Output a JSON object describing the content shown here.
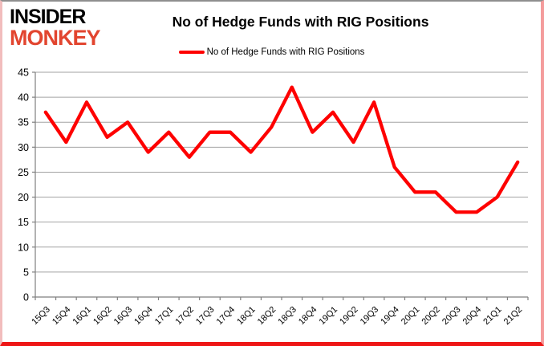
{
  "branding": {
    "logo_line1": "INSIDER",
    "logo_line2": "MONKEY",
    "logo_color_primary": "#000000",
    "logo_color_secondary": "#e2452f"
  },
  "header": {
    "title": "No of Hedge Funds with RIG Positions"
  },
  "legend": {
    "label": "No of Hedge Funds with RIG Positions",
    "marker_color": "#fe0000"
  },
  "chart_data": {
    "type": "line",
    "title": "No of Hedge Funds with RIG Positions",
    "categories": [
      "15Q3",
      "15Q4",
      "16Q1",
      "16Q2",
      "16Q3",
      "16Q4",
      "17Q1",
      "17Q2",
      "17Q3",
      "17Q4",
      "18Q1",
      "18Q2",
      "18Q3",
      "18Q4",
      "19Q1",
      "19Q2",
      "19Q3",
      "19Q4",
      "20Q1",
      "20Q2",
      "20Q3",
      "20Q4",
      "21Q1",
      "21Q2"
    ],
    "series": [
      {
        "name": "No of Hedge Funds with RIG Positions",
        "color": "#fe0000",
        "values": [
          37,
          31,
          39,
          32,
          35,
          29,
          33,
          28,
          33,
          33,
          29,
          34,
          42,
          33,
          37,
          31,
          39,
          26,
          21,
          21,
          17,
          17,
          20,
          27
        ]
      }
    ],
    "xlabel": "",
    "ylabel": "",
    "ylim": [
      0,
      45
    ],
    "yticks": [
      0,
      5,
      10,
      15,
      20,
      25,
      30,
      35,
      40,
      45
    ],
    "grid": true,
    "legend_position": "top-center",
    "gridline_color": "#a3a3a3",
    "axis_color": "#7f7f7f",
    "tick_label_color": "#000000"
  }
}
